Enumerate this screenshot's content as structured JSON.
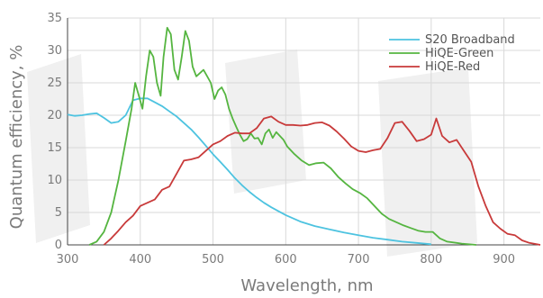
{
  "chart_data": {
    "type": "line",
    "xlabel": "Wavelength, nm",
    "ylabel": "Quantum efficiency, %",
    "xlim": [
      300,
      950
    ],
    "ylim": [
      0,
      35
    ],
    "xticks": [
      300,
      400,
      500,
      600,
      700,
      800,
      900
    ],
    "yticks": [
      0,
      5,
      10,
      15,
      20,
      25,
      30,
      35
    ],
    "grid": true,
    "legend_position": "top-right",
    "series": [
      {
        "name": "S20 Broadband",
        "color": "#4dc3e0",
        "points": [
          [
            300,
            20.1
          ],
          [
            310,
            19.9
          ],
          [
            320,
            20.0
          ],
          [
            330,
            20.2
          ],
          [
            340,
            20.3
          ],
          [
            350,
            19.6
          ],
          [
            360,
            18.8
          ],
          [
            370,
            19.0
          ],
          [
            380,
            20.0
          ],
          [
            390,
            22.3
          ],
          [
            400,
            22.6
          ],
          [
            410,
            22.6
          ],
          [
            420,
            22.0
          ],
          [
            430,
            21.4
          ],
          [
            440,
            20.6
          ],
          [
            450,
            19.8
          ],
          [
            460,
            18.8
          ],
          [
            470,
            17.8
          ],
          [
            480,
            16.6
          ],
          [
            490,
            15.3
          ],
          [
            500,
            14.0
          ],
          [
            510,
            12.8
          ],
          [
            520,
            11.6
          ],
          [
            530,
            10.3
          ],
          [
            540,
            9.2
          ],
          [
            550,
            8.2
          ],
          [
            560,
            7.3
          ],
          [
            570,
            6.5
          ],
          [
            580,
            5.8
          ],
          [
            590,
            5.2
          ],
          [
            600,
            4.6
          ],
          [
            620,
            3.6
          ],
          [
            640,
            2.9
          ],
          [
            660,
            2.4
          ],
          [
            680,
            1.9
          ],
          [
            700,
            1.5
          ],
          [
            720,
            1.1
          ],
          [
            740,
            0.8
          ],
          [
            760,
            0.5
          ],
          [
            780,
            0.3
          ],
          [
            800,
            0.1
          ]
        ]
      },
      {
        "name": "HiQE-Green",
        "color": "#55b540",
        "points": [
          [
            330,
            0
          ],
          [
            340,
            0.5
          ],
          [
            350,
            2
          ],
          [
            360,
            5
          ],
          [
            370,
            10
          ],
          [
            380,
            16
          ],
          [
            388,
            21
          ],
          [
            393,
            25
          ],
          [
            398,
            23
          ],
          [
            403,
            21
          ],
          [
            408,
            26
          ],
          [
            413,
            30
          ],
          [
            418,
            29
          ],
          [
            423,
            25
          ],
          [
            428,
            23
          ],
          [
            432,
            29
          ],
          [
            437,
            33.5
          ],
          [
            442,
            32.5
          ],
          [
            447,
            27
          ],
          [
            452,
            25.5
          ],
          [
            457,
            29
          ],
          [
            462,
            33
          ],
          [
            467,
            31.5
          ],
          [
            472,
            27.5
          ],
          [
            477,
            26
          ],
          [
            482,
            26.5
          ],
          [
            487,
            27
          ],
          [
            492,
            26
          ],
          [
            497,
            25
          ],
          [
            502,
            22.5
          ],
          [
            507,
            23.8
          ],
          [
            512,
            24.3
          ],
          [
            517,
            23.2
          ],
          [
            522,
            21
          ],
          [
            527,
            19.5
          ],
          [
            532,
            18.2
          ],
          [
            537,
            17
          ],
          [
            542,
            16
          ],
          [
            547,
            16.3
          ],
          [
            552,
            17.2
          ],
          [
            557,
            16.4
          ],
          [
            562,
            16.5
          ],
          [
            567,
            15.5
          ],
          [
            572,
            17.2
          ],
          [
            577,
            17.8
          ],
          [
            582,
            16.5
          ],
          [
            587,
            17.4
          ],
          [
            592,
            16.8
          ],
          [
            597,
            16.2
          ],
          [
            602,
            15.2
          ],
          [
            612,
            14
          ],
          [
            622,
            13
          ],
          [
            632,
            12.3
          ],
          [
            642,
            12.6
          ],
          [
            652,
            12.7
          ],
          [
            662,
            11.8
          ],
          [
            672,
            10.5
          ],
          [
            682,
            9.5
          ],
          [
            692,
            8.6
          ],
          [
            702,
            8
          ],
          [
            712,
            7.2
          ],
          [
            722,
            6
          ],
          [
            732,
            4.8
          ],
          [
            742,
            4
          ],
          [
            752,
            3.5
          ],
          [
            762,
            3.0
          ],
          [
            772,
            2.6
          ],
          [
            782,
            2.2
          ],
          [
            792,
            2.0
          ],
          [
            802,
            2.0
          ],
          [
            812,
            1.0
          ],
          [
            822,
            0.5
          ],
          [
            842,
            0.2
          ],
          [
            862,
            0
          ]
        ]
      },
      {
        "name": "HiQE-Red",
        "color": "#c83a3a",
        "points": [
          [
            350,
            0
          ],
          [
            360,
            1
          ],
          [
            370,
            2.2
          ],
          [
            380,
            3.5
          ],
          [
            390,
            4.5
          ],
          [
            400,
            6
          ],
          [
            410,
            6.5
          ],
          [
            420,
            7
          ],
          [
            430,
            8.5
          ],
          [
            440,
            9
          ],
          [
            450,
            11
          ],
          [
            460,
            13
          ],
          [
            470,
            13.2
          ],
          [
            480,
            13.5
          ],
          [
            490,
            14.5
          ],
          [
            500,
            15.5
          ],
          [
            510,
            16
          ],
          [
            520,
            16.8
          ],
          [
            530,
            17.3
          ],
          [
            540,
            17.2
          ],
          [
            550,
            17.2
          ],
          [
            560,
            18
          ],
          [
            570,
            19.5
          ],
          [
            580,
            19.8
          ],
          [
            590,
            19.0
          ],
          [
            600,
            18.5
          ],
          [
            610,
            18.5
          ],
          [
            620,
            18.4
          ],
          [
            630,
            18.5
          ],
          [
            640,
            18.8
          ],
          [
            650,
            18.9
          ],
          [
            660,
            18.4
          ],
          [
            670,
            17.5
          ],
          [
            680,
            16.4
          ],
          [
            690,
            15.2
          ],
          [
            700,
            14.5
          ],
          [
            710,
            14.3
          ],
          [
            720,
            14.6
          ],
          [
            730,
            14.8
          ],
          [
            740,
            16.5
          ],
          [
            750,
            18.8
          ],
          [
            760,
            19
          ],
          [
            770,
            17.6
          ],
          [
            780,
            16
          ],
          [
            790,
            16.3
          ],
          [
            800,
            17
          ],
          [
            807,
            19.5
          ],
          [
            815,
            16.8
          ],
          [
            825,
            15.8
          ],
          [
            835,
            16.2
          ],
          [
            845,
            14.5
          ],
          [
            855,
            12.8
          ],
          [
            865,
            9
          ],
          [
            875,
            6
          ],
          [
            885,
            3.5
          ],
          [
            895,
            2.5
          ],
          [
            905,
            1.7
          ],
          [
            915,
            1.5
          ],
          [
            925,
            0.7
          ],
          [
            935,
            0.3
          ],
          [
            945,
            0.1
          ],
          [
            950,
            0
          ]
        ]
      }
    ]
  }
}
